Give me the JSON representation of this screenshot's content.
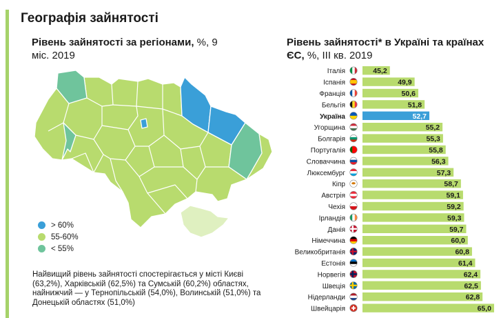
{
  "title": "Географія зайнятості",
  "map": {
    "title_bold": "Рівень зайнятості за регіонами,",
    "title_rest": " %, 9 міс. 2019",
    "colors": {
      "high": "#3a9fd8",
      "mid": "#b8db6e",
      "low": "#6fc49c",
      "crimea": "#dff0c0",
      "border": "#ffffff"
    },
    "legend": [
      {
        "label": "> 60%",
        "color": "#3a9fd8"
      },
      {
        "label": "55-60%",
        "color": "#b8db6e"
      },
      {
        "label": "< 55%",
        "color": "#6fc49c"
      }
    ],
    "note": "Найвищий рівень зайнятості спостерігається у місті Києві (63,2%), Харківській (62,5%) та Сумській (60,2%) областях, найнижчий — у Тернопільській (54,0%), Волинській (51,0%) та Донецькій областях (51,0%)"
  },
  "chart_title": {
    "bold": "Рівень зайнятості* в Україні та країнах ЄС,",
    "rest": " %, ІІІ кв. 2019"
  },
  "chart_data": {
    "type": "bar",
    "orientation": "horizontal",
    "categories": [
      "Італія",
      "Іспанія",
      "Франція",
      "Бельгія",
      "Україна",
      "Угорщина",
      "Болгарія",
      "Португалія",
      "Словаччина",
      "Люксембург",
      "Кіпр",
      "Австрія",
      "Чехія",
      "Ірландія",
      "Данія",
      "Німеччина",
      "Великобританія",
      "Естонія",
      "Норвегія",
      "Швеція",
      "Нідерланди",
      "Швейцарія"
    ],
    "values": [
      45.2,
      49.9,
      50.6,
      51.8,
      52.7,
      55.2,
      55.3,
      55.8,
      56.3,
      57.3,
      58.7,
      59.1,
      59.2,
      59.3,
      59.7,
      60.0,
      60.8,
      61.4,
      62.4,
      62.5,
      62.8,
      65.0
    ],
    "value_labels": [
      "45,2",
      "49,9",
      "50,6",
      "51,8",
      "52,7",
      "55,2",
      "55,3",
      "55,8",
      "56,3",
      "57,3",
      "58,7",
      "59,1",
      "59,2",
      "59,3",
      "59,7",
      "60,0",
      "60,8",
      "61,4",
      "62,4",
      "62,5",
      "62,8",
      "65,0"
    ],
    "highlight": "Україна",
    "bar_color": "#b8db6e",
    "highlight_color": "#3a9fd8",
    "flag_icons": [
      "italy-flag-icon",
      "spain-flag-icon",
      "france-flag-icon",
      "belgium-flag-icon",
      "ukraine-flag-icon",
      "hungary-flag-icon",
      "bulgaria-flag-icon",
      "portugal-flag-icon",
      "slovakia-flag-icon",
      "luxembourg-flag-icon",
      "cyprus-flag-icon",
      "austria-flag-icon",
      "czechia-flag-icon",
      "ireland-flag-icon",
      "denmark-flag-icon",
      "germany-flag-icon",
      "uk-flag-icon",
      "estonia-flag-icon",
      "norway-flag-icon",
      "sweden-flag-icon",
      "netherlands-flag-icon",
      "switzerland-flag-icon"
    ]
  }
}
